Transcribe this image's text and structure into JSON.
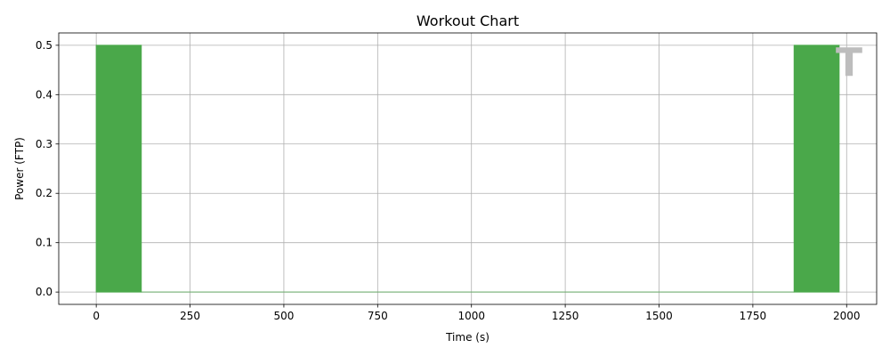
{
  "chart_data": {
    "type": "bar",
    "title": "Workout Chart",
    "xlabel": "Time (s)",
    "ylabel": "Power (FTP)",
    "xlim": [
      -100,
      2080
    ],
    "ylim": [
      -0.025,
      0.525
    ],
    "grid": true,
    "x_ticks": [
      0,
      250,
      500,
      750,
      1000,
      1250,
      1500,
      1750,
      2000
    ],
    "y_ticks": [
      0.0,
      0.1,
      0.2,
      0.3,
      0.4,
      0.5
    ],
    "x_tick_labels": [
      "0",
      "250",
      "500",
      "750",
      "1000",
      "1250",
      "1500",
      "1750",
      "2000"
    ],
    "y_tick_labels": [
      "0.0",
      "0.1",
      "0.2",
      "0.3",
      "0.4",
      "0.5"
    ],
    "segments": [
      {
        "start": 0,
        "end": 120,
        "power": 0.5,
        "color": "#4aa84a"
      },
      {
        "start": 120,
        "end": 1860,
        "power": 0.0,
        "color": "#4aa84a"
      },
      {
        "start": 1860,
        "end": 1980,
        "power": 0.5,
        "color": "#4aa84a"
      }
    ],
    "watermark_glyph": "T",
    "watermark_color": "#bdbdbd"
  }
}
